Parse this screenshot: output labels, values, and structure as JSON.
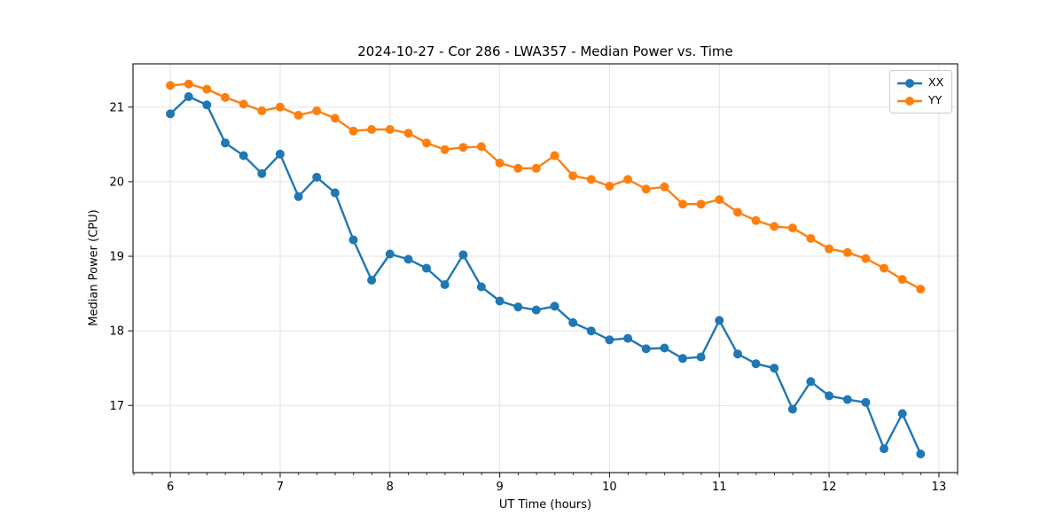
{
  "chart_data": {
    "type": "line",
    "title": "2024-10-27 - Cor 286 - LWA357 - Median Power vs. Time",
    "xlabel": "UT Time (hours)",
    "ylabel": "Median Power (CPU)",
    "xlim": [
      5.66,
      13.17
    ],
    "ylim": [
      16.1,
      21.58
    ],
    "xticks": [
      6,
      7,
      8,
      9,
      10,
      11,
      12,
      13
    ],
    "yticks": [
      17,
      18,
      19,
      20,
      21
    ],
    "x_minor_step": 0.1667,
    "grid": true,
    "grid_color": "#e3e3e3",
    "legend_position": "upper right",
    "x": [
      6.0,
      6.167,
      6.333,
      6.5,
      6.667,
      6.833,
      7.0,
      7.167,
      7.333,
      7.5,
      7.667,
      7.833,
      8.0,
      8.167,
      8.333,
      8.5,
      8.667,
      8.833,
      9.0,
      9.167,
      9.333,
      9.5,
      9.667,
      9.833,
      10.0,
      10.167,
      10.333,
      10.5,
      10.667,
      10.833,
      11.0,
      11.167,
      11.333,
      11.5,
      11.667,
      11.833,
      12.0,
      12.167,
      12.333,
      12.5,
      12.667,
      12.833
    ],
    "series": [
      {
        "name": "XX",
        "color": "#1f77b4",
        "values": [
          20.91,
          21.14,
          21.03,
          20.52,
          20.35,
          20.11,
          20.37,
          19.8,
          20.06,
          19.85,
          19.22,
          18.68,
          19.03,
          18.96,
          18.84,
          18.62,
          19.02,
          18.59,
          18.4,
          18.32,
          18.28,
          18.33,
          18.11,
          18.0,
          17.88,
          17.9,
          17.76,
          17.77,
          17.63,
          17.65,
          18.14,
          17.69,
          17.56,
          17.5,
          16.95,
          17.32,
          17.13,
          17.08,
          17.04,
          16.42,
          16.89,
          16.35
        ]
      },
      {
        "name": "YY",
        "color": "#ff7f0e",
        "values": [
          21.29,
          21.31,
          21.24,
          21.13,
          21.04,
          20.95,
          21.0,
          20.89,
          20.95,
          20.85,
          20.68,
          20.7,
          20.7,
          20.65,
          20.52,
          20.43,
          20.46,
          20.47,
          20.25,
          20.18,
          20.18,
          20.35,
          20.08,
          20.03,
          19.94,
          20.03,
          19.9,
          19.93,
          19.7,
          19.7,
          19.76,
          19.59,
          19.48,
          19.4,
          19.38,
          19.24,
          19.1,
          19.05,
          18.97,
          18.84,
          18.69,
          18.56
        ]
      }
    ]
  }
}
